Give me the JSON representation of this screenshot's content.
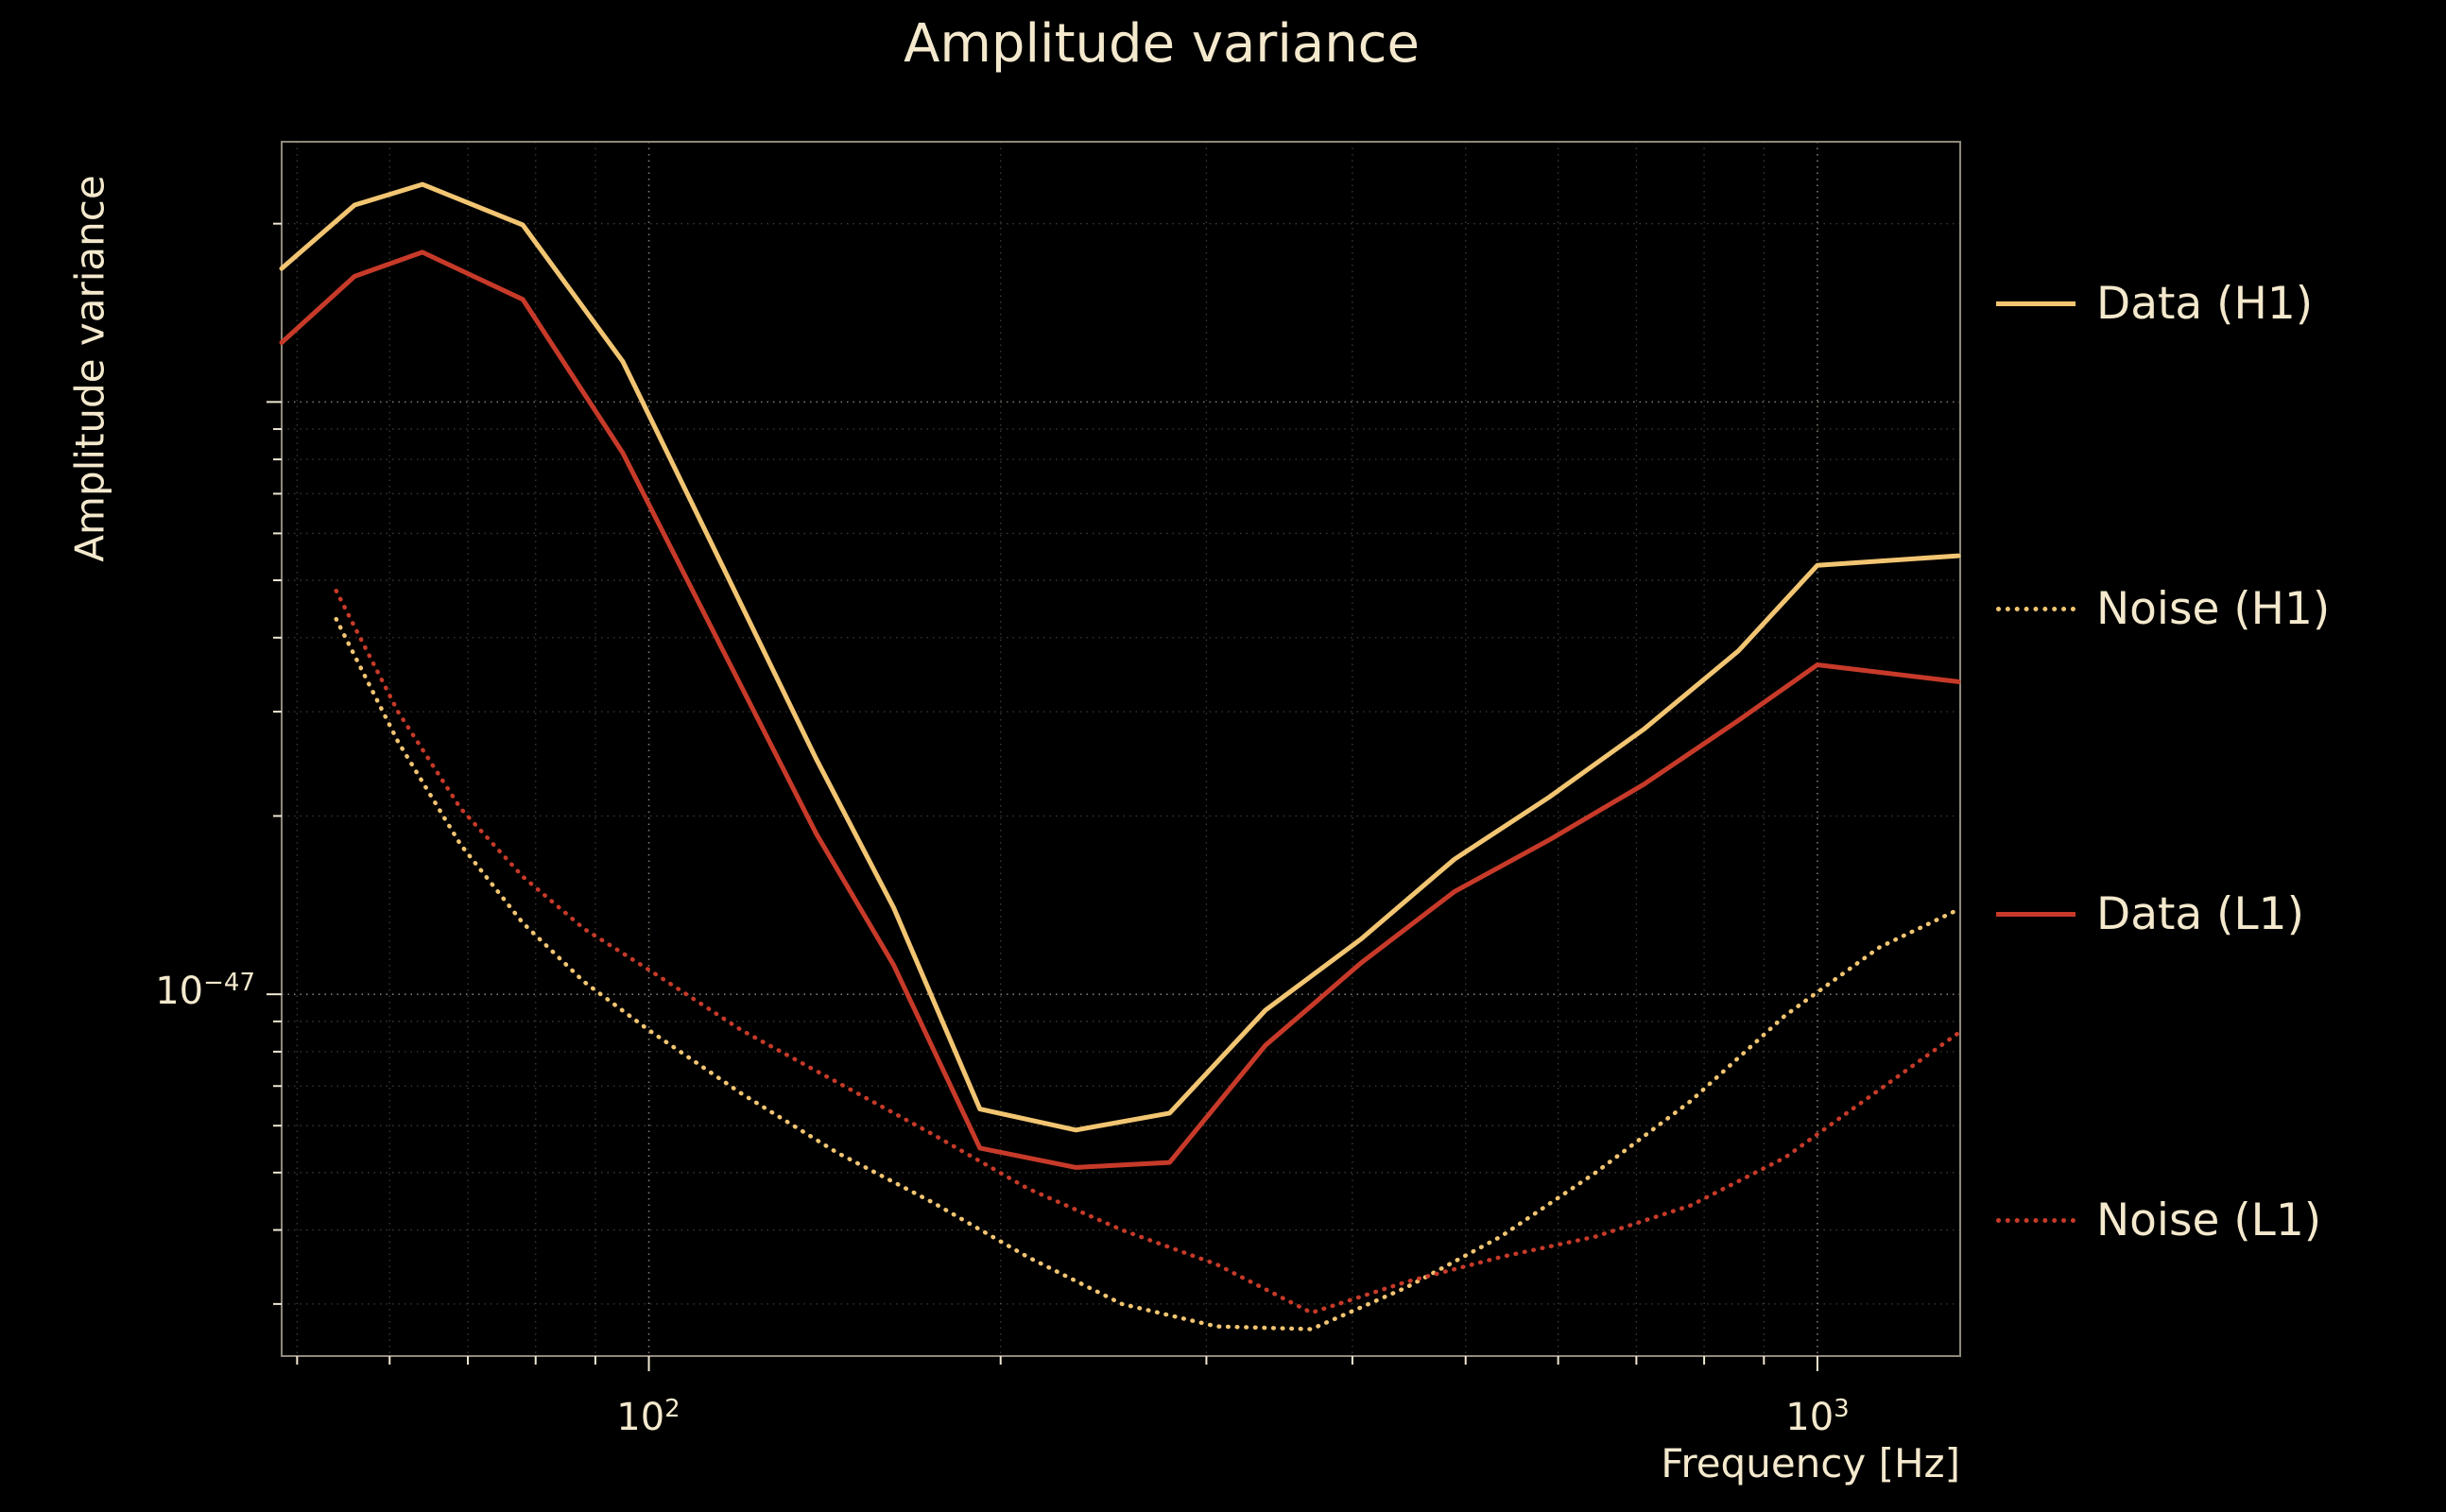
{
  "title": "Amplitude variance",
  "colors": {
    "background": "#000000",
    "text": "#f4e9cd",
    "h1": "#f2c572",
    "l1": "#c73a29",
    "grid_major": "rgba(235,228,210,0.55)",
    "grid_minor": "rgba(235,228,210,0.26)",
    "frame": "#8f897c",
    "tick": "#efe7d2"
  },
  "legend": {
    "items": [
      {
        "label": "Data (H1)",
        "color": "h1",
        "style": "solid"
      },
      {
        "label": "Noise (H1)",
        "color": "h1",
        "style": "dotted"
      },
      {
        "label": "Data (L1)",
        "color": "l1",
        "style": "solid"
      },
      {
        "label": "Noise (L1)",
        "color": "l1",
        "style": "dotted"
      }
    ]
  },
  "chart_data": {
    "type": "line",
    "title": "Amplitude variance",
    "xlabel": "Frequency [Hz]",
    "ylabel": "Amplitude variance",
    "xscale": "log",
    "yscale": "log",
    "xlim": [
      48.5,
      1325
    ],
    "ylim": [
      2.45e-48,
      2.75e-46
    ],
    "grid": true,
    "legend_position": "right-outside",
    "xticks": [
      {
        "value": 100,
        "base": "10",
        "exp": "2"
      },
      {
        "value": 1000,
        "base": "10",
        "exp": "3"
      }
    ],
    "yticks": [
      {
        "value": 1e-47,
        "base": "10",
        "exp": "−47"
      }
    ],
    "series": [
      {
        "name": "Data (H1)",
        "color": "h1",
        "style": "solid",
        "x": [
          48.5,
          56,
          64,
          78,
          95,
          115,
          139,
          162,
          192,
          232,
          279,
          337,
          407,
          489,
          589,
          710,
          856,
          1000,
          1320
        ],
        "y": [
          1.68e-46,
          2.15e-46,
          2.33e-46,
          1.99e-46,
          1.17e-46,
          5.4e-47,
          2.5e-47,
          1.4e-47,
          6.4e-48,
          5.9e-48,
          6.3e-48,
          9.4e-48,
          1.24e-47,
          1.69e-47,
          2.15e-47,
          2.8e-47,
          3.8e-47,
          5.3e-47,
          5.5e-47
        ]
      },
      {
        "name": "Noise (H1)",
        "color": "h1",
        "style": "dotted",
        "x": [
          54,
          61,
          69,
          78,
          88,
          100,
          120,
          145,
          175,
          211,
          254,
          306,
          369,
          445,
          536,
          646,
          779,
          938,
          1130,
          1320
        ],
        "y": [
          4.3e-47,
          2.67e-47,
          1.79e-47,
          1.32e-47,
          1.05e-47,
          8.7e-48,
          6.8e-48,
          5.4e-48,
          4.45e-48,
          3.6e-48,
          3e-48,
          2.75e-48,
          2.72e-48,
          3.2e-48,
          3.9e-48,
          5e-48,
          6.6e-48,
          9.2e-48,
          1.2e-47,
          1.39e-47
        ]
      },
      {
        "name": "Data (L1)",
        "color": "l1",
        "style": "solid",
        "x": [
          48.5,
          56,
          64,
          78,
          95,
          115,
          139,
          162,
          192,
          232,
          279,
          337,
          407,
          489,
          589,
          710,
          856,
          1000,
          1320
        ],
        "y": [
          1.26e-46,
          1.63e-46,
          1.79e-46,
          1.49e-46,
          8.2e-47,
          3.9e-47,
          1.87e-47,
          1.12e-47,
          5.5e-48,
          5.1e-48,
          5.2e-48,
          8.2e-48,
          1.13e-47,
          1.49e-47,
          1.82e-47,
          2.26e-47,
          2.9e-47,
          3.6e-47,
          3.37e-47
        ]
      },
      {
        "name": "Noise (L1)",
        "color": "l1",
        "style": "dotted",
        "x": [
          54,
          61,
          69,
          78,
          88,
          100,
          120,
          145,
          175,
          211,
          254,
          306,
          369,
          445,
          536,
          646,
          779,
          938,
          1130,
          1320
        ],
        "y": [
          4.8e-47,
          3e-47,
          2.06e-47,
          1.58e-47,
          1.29e-47,
          1.1e-47,
          8.7e-48,
          7.1e-48,
          5.8e-48,
          4.7e-48,
          4e-48,
          3.5e-48,
          2.9e-48,
          3.27e-48,
          3.6e-48,
          3.9e-48,
          4.4e-48,
          5.3e-48,
          6.9e-48,
          8.6e-48
        ]
      }
    ]
  }
}
